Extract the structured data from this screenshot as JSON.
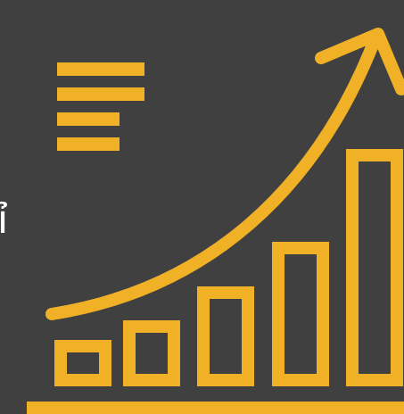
{
  "graphic": {
    "icon": "growth-chart-icon",
    "stray_text": "ỉ",
    "colors": {
      "background": "#404040",
      "accent": "#F0B127",
      "text": "#FFFFFF"
    }
  }
}
